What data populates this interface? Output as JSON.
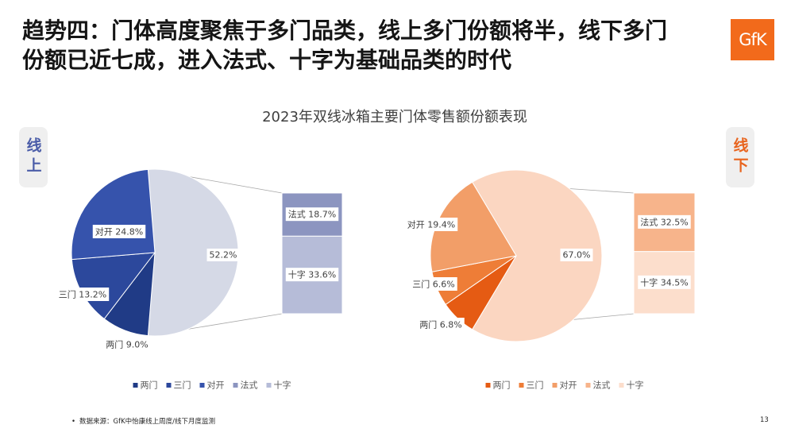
{
  "header": {
    "title_line1": "趋势四：门体高度聚焦于多门品类，线上多门份额将半，线下多门",
    "title_line2": "份额已近七成，进入法式、十字为基础品类的时代",
    "logo_text": "GfK",
    "logo_color": "#f26a1b"
  },
  "figure_title": "2023年双线冰箱主要门体零售额份额表现",
  "chart_data": [
    {
      "type": "pie",
      "variant": "bar-of-pie",
      "channel": "线上",
      "channel_color": "#4a5ca8",
      "pie_slices": [
        {
          "label": "两门",
          "value": 9.0,
          "color": "#203b86"
        },
        {
          "label": "三门",
          "value": 13.2,
          "color": "#2c489c"
        },
        {
          "label": "对开",
          "value": 24.8,
          "color": "#3653ac"
        }
      ],
      "split_slice": {
        "value": 52.2,
        "color": "#d5d9e6"
      },
      "bar_segments": [
        {
          "label": "法式",
          "value": 18.7,
          "color": "#8c95c0"
        },
        {
          "label": "十字",
          "value": 33.6,
          "color": "#b6bcd8"
        }
      ],
      "legend_position": "bottom"
    },
    {
      "type": "pie",
      "variant": "bar-of-pie",
      "channel": "线下",
      "channel_color": "#e8641e",
      "pie_slices": [
        {
          "label": "两门",
          "value": 6.8,
          "color": "#e55b13"
        },
        {
          "label": "三门",
          "value": 6.6,
          "color": "#ee7d37"
        },
        {
          "label": "对开",
          "value": 19.4,
          "color": "#f29e68"
        }
      ],
      "split_slice": {
        "value": 67.0,
        "color": "#fbd6c1"
      },
      "bar_segments": [
        {
          "label": "法式",
          "value": 32.5,
          "color": "#f7b48b"
        },
        {
          "label": "十字",
          "value": 34.5,
          "color": "#fcdecc"
        }
      ],
      "legend_position": "bottom"
    }
  ],
  "footer": {
    "bullet": "•",
    "source": "数据来源：GfK中怡康线上周度/线下月度监测",
    "page_number": "13"
  }
}
